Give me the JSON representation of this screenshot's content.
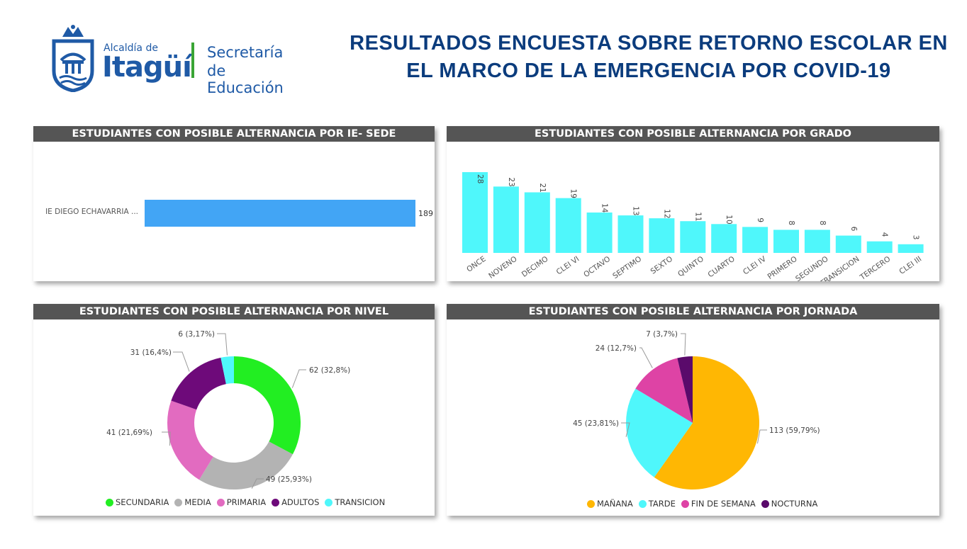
{
  "header": {
    "logo_line1": "Alcaldía de",
    "logo_line2": "Itagüí",
    "logo_sec1": "Secretaría",
    "logo_sec2": "de Educación",
    "title_line1": "RESULTADOS ENCUESTA SOBRE RETORNO ESCOLAR EN",
    "title_line2": "EL MARCO DE LA EMERGENCIA POR COVID-19"
  },
  "panels": {
    "sede": {
      "title": "ESTUDIANTES CON POSIBLE ALTERNANCIA POR IE- SEDE"
    },
    "grado": {
      "title": "ESTUDIANTES CON POSIBLE ALTERNANCIA POR GRADO"
    },
    "nivel": {
      "title": "ESTUDIANTES CON POSIBLE ALTERNANCIA POR NIVEL"
    },
    "jornada": {
      "title": "ESTUDIANTES CON POSIBLE ALTERNANCIA POR JORNADA"
    }
  },
  "colors": {
    "sede_bar": "#42a5f5",
    "grado_bar": "#4ff7fb",
    "header_bar": "#555555",
    "title": "#0b3c7d"
  },
  "chart_data": [
    {
      "type": "bar",
      "orientation": "horizontal",
      "categories": [
        "IE DIEGO ECHAVARRIA ..."
      ],
      "values": [
        189
      ],
      "data_labels": [
        "189"
      ]
    },
    {
      "type": "bar",
      "categories": [
        "ONCE",
        "NOVENO",
        "DECIMO",
        "CLEI VI",
        "OCTAVO",
        "SEPTIMO",
        "SEXTO",
        "QUINTO",
        "CUARTO",
        "CLEI IV",
        "PRIMERO",
        "SEGUNDO",
        "TRANSICION",
        "TERCERO",
        "CLEI III"
      ],
      "values": [
        28,
        23,
        21,
        19,
        14,
        13,
        12,
        11,
        10,
        9,
        8,
        8,
        6,
        4,
        3
      ]
    },
    {
      "type": "pie",
      "variant": "donut",
      "legend_position": "bottom",
      "slices": [
        {
          "name": "SECUNDARIA",
          "value": 62,
          "label": "62 (32,8%)",
          "color": "#22ee22"
        },
        {
          "name": "MEDIA",
          "value": 49,
          "label": "49 (25,93%)",
          "color": "#b3b3b3"
        },
        {
          "name": "PRIMARIA",
          "value": 41,
          "label": "41 (21,69%)",
          "color": "#e26bc0"
        },
        {
          "name": "ADULTOS",
          "value": 31,
          "label": "31 (16,4%)",
          "color": "#6e0a7a"
        },
        {
          "name": "TRANSICION",
          "value": 6,
          "label": "6 (3,17%)",
          "color": "#4ff7fb"
        }
      ]
    },
    {
      "type": "pie",
      "legend_position": "bottom",
      "slices": [
        {
          "name": "MAÑANA",
          "value": 113,
          "label": "113 (59,79%)",
          "color": "#ffb703"
        },
        {
          "name": "TARDE",
          "value": 45,
          "label": "45 (23,81%)",
          "color": "#4ff7fb"
        },
        {
          "name": "FIN DE SEMANA",
          "value": 24,
          "label": "24 (12,7%)",
          "color": "#de43a5"
        },
        {
          "name": "NOCTURNA",
          "value": 7,
          "label": "7 (3,7%)",
          "color": "#5a0a6b"
        }
      ]
    }
  ]
}
